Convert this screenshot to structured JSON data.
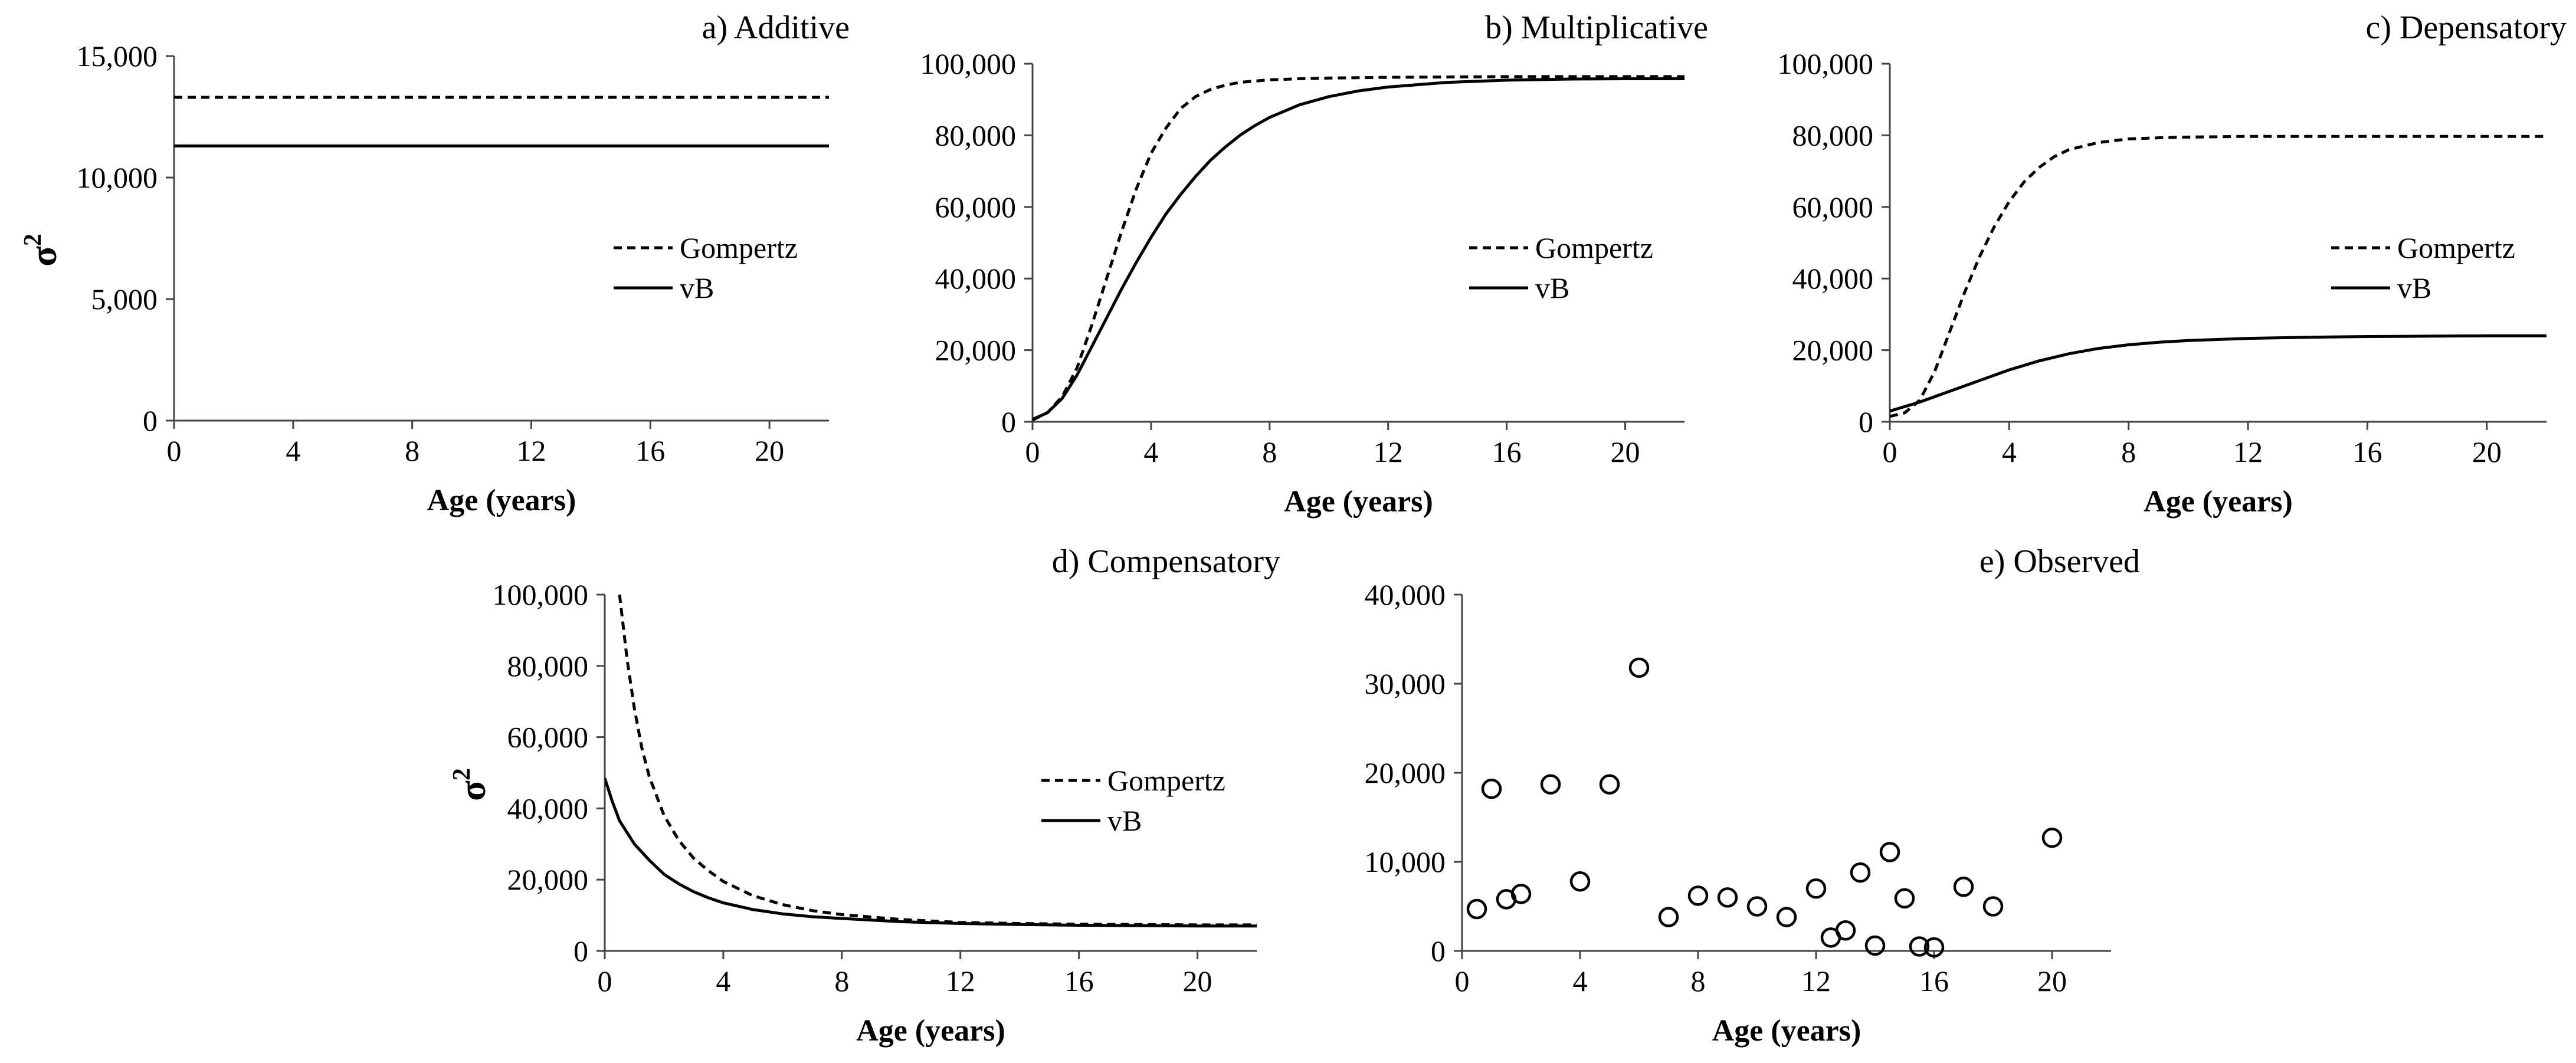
{
  "figure": {
    "ylabel_symbol": "σ",
    "ylabel_exponent": "2"
  },
  "chart_data": [
    {
      "id": "a",
      "type": "line",
      "title": "a) Additive",
      "xlabel": "Age (years)",
      "ylabel": "σ2",
      "xlim": [
        0,
        22
      ],
      "ylim": [
        0,
        15000
      ],
      "xticks": [
        0,
        4,
        8,
        12,
        16,
        20
      ],
      "yticks": [
        0,
        5000,
        10000,
        15000
      ],
      "xtick_labels": [
        "0",
        "4",
        "8",
        "12",
        "16",
        "20"
      ],
      "ytick_labels": [
        "0",
        "5,000",
        "10,000",
        "15,000"
      ],
      "legend": "center-right",
      "series": [
        {
          "name": "Gompertz",
          "style": "dashed",
          "x": [
            0,
            22
          ],
          "y": [
            13300,
            13300
          ]
        },
        {
          "name": "vB",
          "style": "solid",
          "x": [
            0,
            22
          ],
          "y": [
            11300,
            11300
          ]
        }
      ]
    },
    {
      "id": "b",
      "type": "line",
      "title": "b) Multiplicative",
      "xlabel": "Age (years)",
      "ylabel": "",
      "xlim": [
        0,
        22
      ],
      "ylim": [
        0,
        100000
      ],
      "xticks": [
        0,
        4,
        8,
        12,
        16,
        20
      ],
      "yticks": [
        0,
        20000,
        40000,
        60000,
        80000,
        100000
      ],
      "xtick_labels": [
        "0",
        "4",
        "8",
        "12",
        "16",
        "20"
      ],
      "ytick_labels": [
        "0",
        "20,000",
        "40,000",
        "60,000",
        "80,000",
        "100,000"
      ],
      "legend": "center-right",
      "series": [
        {
          "name": "Gompertz",
          "style": "dashed",
          "x": [
            0,
            0.5,
            1,
            1.5,
            2,
            2.5,
            3,
            3.5,
            4,
            4.5,
            5,
            5.5,
            6,
            6.5,
            7,
            8,
            9,
            10,
            12,
            14,
            16,
            18,
            20,
            22
          ],
          "y": [
            500,
            2500,
            7000,
            15000,
            27000,
            40000,
            53000,
            65000,
            75000,
            82000,
            87500,
            90800,
            92800,
            94000,
            94800,
            95500,
            95800,
            96000,
            96200,
            96300,
            96400,
            96400,
            96400,
            96400
          ]
        },
        {
          "name": "vB",
          "style": "solid",
          "x": [
            0,
            0.5,
            1,
            1.5,
            2,
            2.5,
            3,
            3.5,
            4,
            4.5,
            5,
            5.5,
            6,
            6.5,
            7,
            7.5,
            8,
            9,
            10,
            11,
            12,
            14,
            16,
            18,
            20,
            22
          ],
          "y": [
            700,
            2500,
            6500,
            13000,
            21000,
            29000,
            37000,
            44500,
            51500,
            58000,
            63500,
            68500,
            73000,
            76700,
            80000,
            82700,
            85000,
            88500,
            90800,
            92400,
            93500,
            94800,
            95400,
            95700,
            95800,
            95800
          ]
        }
      ]
    },
    {
      "id": "c",
      "type": "line",
      "title": "c) Depensatory",
      "xlabel": "Age (years)",
      "ylabel": "",
      "xlim": [
        0,
        22
      ],
      "ylim": [
        0,
        100000
      ],
      "xticks": [
        0,
        4,
        8,
        12,
        16,
        20
      ],
      "yticks": [
        0,
        20000,
        40000,
        60000,
        80000,
        100000
      ],
      "xtick_labels": [
        "0",
        "4",
        "8",
        "12",
        "16",
        "20"
      ],
      "ytick_labels": [
        "0",
        "20,000",
        "40,000",
        "60,000",
        "80,000",
        "100,000"
      ],
      "legend": "center-right",
      "series": [
        {
          "name": "Gompertz",
          "style": "dashed",
          "x": [
            0,
            0.5,
            1,
            1.5,
            2,
            2.5,
            3,
            3.5,
            4,
            4.5,
            5,
            5.5,
            6,
            7,
            8,
            9,
            10,
            12,
            14,
            16,
            18,
            20,
            22
          ],
          "y": [
            1500,
            2500,
            6000,
            14000,
            25000,
            36000,
            46000,
            54500,
            61500,
            67000,
            71000,
            74000,
            76000,
            78000,
            79000,
            79300,
            79500,
            79700,
            79700,
            79700,
            79700,
            79700,
            79700
          ]
        },
        {
          "name": "vB",
          "style": "solid",
          "x": [
            0,
            1,
            2,
            3,
            4,
            5,
            6,
            7,
            8,
            9,
            10,
            12,
            14,
            16,
            18,
            20,
            22
          ],
          "y": [
            3000,
            5500,
            8500,
            11500,
            14500,
            17000,
            19000,
            20500,
            21500,
            22200,
            22700,
            23300,
            23600,
            23800,
            23900,
            24000,
            24000
          ]
        }
      ]
    },
    {
      "id": "d",
      "type": "line",
      "title": "d) Compensatory",
      "xlabel": "Age (years)",
      "ylabel": "σ2",
      "xlim": [
        0,
        22
      ],
      "ylim": [
        0,
        100000
      ],
      "xticks": [
        0,
        4,
        8,
        12,
        16,
        20
      ],
      "yticks": [
        0,
        20000,
        40000,
        60000,
        80000,
        100000
      ],
      "xtick_labels": [
        "0",
        "4",
        "8",
        "12",
        "16",
        "20"
      ],
      "ytick_labels": [
        "0",
        "20,000",
        "40,000",
        "60,000",
        "80,000",
        "100,000"
      ],
      "legend": "center-right",
      "series": [
        {
          "name": "Gompertz",
          "style": "dashed",
          "x": [
            0.5,
            0.75,
            1,
            1.25,
            1.5,
            2,
            2.5,
            3,
            3.5,
            4,
            5,
            6,
            7,
            8,
            10,
            12,
            14,
            16,
            18,
            20,
            22
          ],
          "y": [
            100000,
            82000,
            68000,
            57000,
            49000,
            38000,
            31000,
            26000,
            22500,
            19500,
            15500,
            13000,
            11300,
            10200,
            8800,
            8000,
            7700,
            7500,
            7400,
            7300,
            7300
          ]
        },
        {
          "name": "vB",
          "style": "solid",
          "x": [
            0,
            0.25,
            0.5,
            1,
            1.5,
            2,
            2.5,
            3,
            3.5,
            4,
            5,
            6,
            7,
            8,
            10,
            12,
            14,
            16,
            18,
            20,
            22
          ],
          "y": [
            48500,
            42000,
            36500,
            30000,
            25500,
            21500,
            18800,
            16600,
            14900,
            13500,
            11600,
            10400,
            9600,
            9100,
            8200,
            7700,
            7400,
            7200,
            7100,
            7000,
            7000
          ]
        }
      ]
    },
    {
      "id": "e",
      "type": "scatter",
      "title": "e) Observed",
      "xlabel": "Age (years)",
      "ylabel": "",
      "xlim": [
        0,
        22
      ],
      "ylim": [
        0,
        40000
      ],
      "xticks": [
        0,
        4,
        8,
        12,
        16,
        20
      ],
      "yticks": [
        0,
        10000,
        20000,
        30000,
        40000
      ],
      "xtick_labels": [
        "0",
        "4",
        "8",
        "12",
        "16",
        "20"
      ],
      "ytick_labels": [
        "0",
        "10,000",
        "20,000",
        "30,000",
        "40,000"
      ],
      "legend": "none",
      "series": [
        {
          "name": "Observed",
          "style": "open-circle",
          "x": [
            0.5,
            1,
            1.5,
            2,
            3,
            4,
            5,
            6,
            7,
            8,
            9,
            10,
            11,
            12,
            12.5,
            13,
            13.5,
            14,
            14.5,
            15,
            15.5,
            16,
            17,
            18,
            20
          ],
          "y": [
            4700,
            18200,
            5800,
            6400,
            18700,
            7800,
            18700,
            31800,
            3800,
            6200,
            6000,
            5000,
            3800,
            7000,
            1500,
            2300,
            8800,
            600,
            11100,
            5900,
            500,
            400,
            7200,
            5000,
            12700
          ]
        }
      ]
    }
  ]
}
